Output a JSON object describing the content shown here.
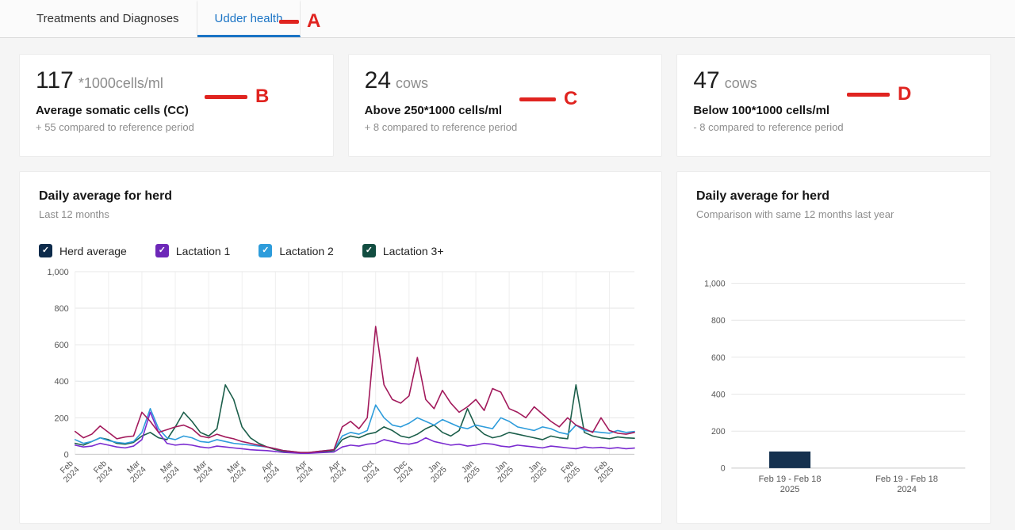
{
  "tabs": [
    {
      "label": "Treatments and Diagnoses",
      "active": false
    },
    {
      "label": "Udder health",
      "active": true
    }
  ],
  "annotations": {
    "color": "#e02420",
    "items": [
      {
        "label": "A"
      },
      {
        "label": "B"
      },
      {
        "label": "C"
      },
      {
        "label": "D"
      }
    ]
  },
  "icons": {
    "checkmark": "✓"
  },
  "stat_cards": [
    {
      "value": "117",
      "unit": "*1000cells/ml",
      "title": "Average somatic cells (CC)",
      "delta": "+ 55 compared to reference period"
    },
    {
      "value": "24",
      "unit": "cows",
      "title": "Above 250*1000 cells/ml",
      "delta": "+ 8 compared to reference period"
    },
    {
      "value": "47",
      "unit": "cows",
      "title": "Below 100*1000 cells/ml",
      "delta": "- 8 compared to reference period"
    }
  ],
  "chart_data": [
    {
      "type": "line",
      "title": "Daily average for herd",
      "subtitle": "Last 12 months",
      "ylim": [
        0,
        1000
      ],
      "yticks": [
        0,
        200,
        400,
        600,
        800,
        1000
      ],
      "tick_every": 4,
      "x_tick_labels": [
        "Feb 2024",
        "Feb 2024",
        "Mar 2024",
        "Mar 2024",
        "Mar 2024",
        "Mar 2024",
        "Apr 2024",
        "Apr 2024",
        "Apr 2024",
        "Oct 2024",
        "Dec 2024",
        "Jan 2025",
        "Jan 2025",
        "Jan 2025",
        "Jan 2025",
        "Feb 2025",
        "Feb 2025"
      ],
      "legend": [
        {
          "label": "Herd average",
          "swatch": "#0d2b4b",
          "checked": true
        },
        {
          "label": "Lactation 1",
          "swatch": "#6d28b8",
          "checked": true
        },
        {
          "label": "Lactation 2",
          "swatch": "#2d9cdb",
          "checked": true
        },
        {
          "label": "Lactation 3+",
          "swatch": "#124d41",
          "checked": true
        }
      ],
      "series": [
        {
          "name": "Herd average",
          "color": "#a2195b",
          "values": [
            125,
            90,
            110,
            155,
            120,
            85,
            95,
            100,
            230,
            180,
            120,
            135,
            150,
            160,
            140,
            100,
            90,
            110,
            95,
            85,
            70,
            60,
            50,
            40,
            30,
            20,
            15,
            10,
            10,
            15,
            20,
            25,
            150,
            180,
            140,
            200,
            700,
            380,
            300,
            280,
            320,
            530,
            300,
            250,
            350,
            280,
            230,
            260,
            300,
            240,
            360,
            340,
            250,
            230,
            200,
            260,
            220,
            180,
            150,
            200,
            160,
            140,
            120,
            200,
            130,
            115,
            110,
            120
          ]
        },
        {
          "name": "Lactation 1",
          "color": "#7a2bd0",
          "values": [
            50,
            40,
            45,
            60,
            50,
            40,
            35,
            45,
            80,
            230,
            120,
            60,
            50,
            55,
            50,
            40,
            35,
            45,
            40,
            35,
            30,
            25,
            22,
            20,
            15,
            10,
            8,
            5,
            5,
            8,
            10,
            12,
            40,
            50,
            45,
            55,
            60,
            80,
            70,
            60,
            55,
            65,
            90,
            70,
            60,
            50,
            55,
            45,
            50,
            60,
            55,
            45,
            40,
            50,
            45,
            40,
            35,
            45,
            40,
            35,
            30,
            40,
            35,
            38,
            32,
            36,
            30,
            34
          ]
        },
        {
          "name": "Lactation 2",
          "color": "#2d9cdb",
          "values": [
            80,
            60,
            70,
            90,
            75,
            65,
            60,
            70,
            120,
            250,
            140,
            90,
            80,
            100,
            90,
            70,
            65,
            80,
            70,
            60,
            55,
            50,
            45,
            40,
            30,
            20,
            15,
            10,
            10,
            15,
            20,
            25,
            100,
            120,
            110,
            130,
            270,
            200,
            160,
            150,
            170,
            200,
            180,
            160,
            190,
            170,
            150,
            140,
            160,
            150,
            140,
            200,
            180,
            150,
            140,
            130,
            150,
            140,
            120,
            110,
            160,
            130,
            125,
            120,
            115,
            130,
            120,
            125
          ]
        },
        {
          "name": "Lactation 3+",
          "color": "#1b5e4a",
          "values": [
            60,
            50,
            70,
            90,
            80,
            60,
            55,
            65,
            100,
            120,
            90,
            80,
            150,
            230,
            180,
            120,
            100,
            140,
            380,
            300,
            150,
            90,
            60,
            40,
            25,
            15,
            10,
            8,
            8,
            10,
            15,
            20,
            80,
            100,
            90,
            110,
            120,
            150,
            130,
            100,
            90,
            110,
            140,
            160,
            120,
            100,
            130,
            250,
            150,
            110,
            90,
            100,
            120,
            110,
            100,
            90,
            80,
            100,
            90,
            85,
            380,
            120,
            100,
            90,
            85,
            95,
            90,
            88
          ]
        }
      ]
    },
    {
      "type": "bar",
      "title": "Daily average for herd",
      "subtitle": "Comparison with same 12 months last year",
      "categories": [
        [
          "Feb 19 - Feb 18",
          "2025"
        ],
        [
          "Feb 19 - Feb 18",
          "2024"
        ]
      ],
      "values": [
        90,
        0
      ],
      "bar_color": "#15314f",
      "ylim": [
        0,
        1000
      ],
      "yticks": [
        0,
        200,
        400,
        600,
        800,
        1000
      ]
    }
  ]
}
